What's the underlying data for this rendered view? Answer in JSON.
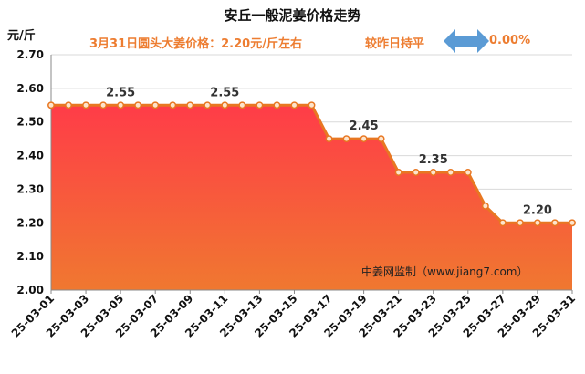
{
  "chart_data": {
    "type": "area",
    "title": "安丘一般泥姜价格走势",
    "subtitle": "3月31日圆头大姜价格：2.20元/斤左右",
    "change_label": "较昨日持平",
    "change_value": "0.00%",
    "ylabel": "元/斤",
    "watermark": "中姜网监制（www.jiang7.com）",
    "ylim": [
      2.0,
      2.7
    ],
    "yticks": [
      "2.00",
      "2.10",
      "2.20",
      "2.30",
      "2.40",
      "2.50",
      "2.60",
      "2.70"
    ],
    "x": [
      "25-03-01",
      "25-03-02",
      "25-03-03",
      "25-03-04",
      "25-03-05",
      "25-03-06",
      "25-03-07",
      "25-03-08",
      "25-03-09",
      "25-03-10",
      "25-03-11",
      "25-03-12",
      "25-03-13",
      "25-03-14",
      "25-03-15",
      "25-03-16",
      "25-03-17",
      "25-03-18",
      "25-03-19",
      "25-03-20",
      "25-03-21",
      "25-03-22",
      "25-03-23",
      "25-03-24",
      "25-03-25",
      "25-03-26",
      "25-03-27",
      "25-03-28",
      "25-03-29",
      "25-03-30",
      "25-03-31"
    ],
    "xtick_labels": [
      "25-03-01",
      "25-03-03",
      "25-03-05",
      "25-03-07",
      "25-03-09",
      "25-03-11",
      "25-03-13",
      "25-03-15",
      "25-03-17",
      "25-03-19",
      "25-03-21",
      "25-03-23",
      "25-03-25",
      "25-03-27",
      "25-03-29",
      "25-03-31"
    ],
    "values": [
      2.55,
      2.55,
      2.55,
      2.55,
      2.55,
      2.55,
      2.55,
      2.55,
      2.55,
      2.55,
      2.55,
      2.55,
      2.55,
      2.55,
      2.55,
      2.55,
      2.45,
      2.45,
      2.45,
      2.45,
      2.35,
      2.35,
      2.35,
      2.35,
      2.35,
      2.25,
      2.2,
      2.2,
      2.2,
      2.2,
      2.2
    ],
    "data_labels": [
      {
        "index": 4,
        "text": "2.55"
      },
      {
        "index": 10,
        "text": "2.55"
      },
      {
        "index": 18,
        "text": "2.45"
      },
      {
        "index": 22,
        "text": "2.35"
      },
      {
        "index": 28,
        "text": "2.20"
      }
    ],
    "grid": "horizontal",
    "legend": "none",
    "colors": {
      "line": "#e87722",
      "marker_fill": "#fde4cc",
      "area_top": "#ff3c48",
      "area_bottom": "#f07830",
      "subtitle": "#ed7d31",
      "arrow": "#5b9bd5"
    }
  }
}
